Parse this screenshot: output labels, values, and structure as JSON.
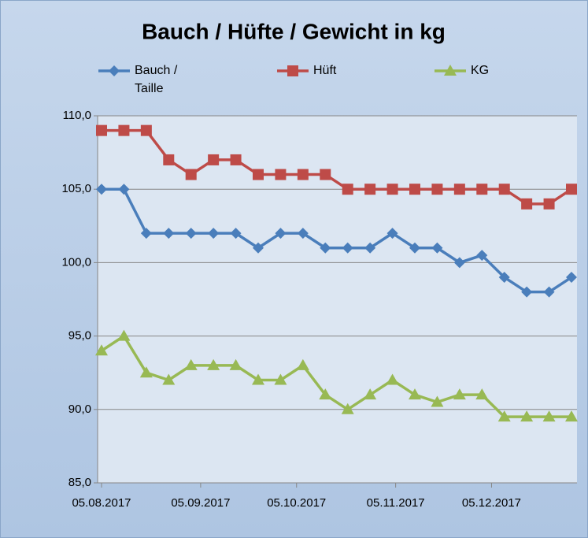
{
  "chart_data": {
    "type": "line",
    "title": "Bauch / Hüfte /  Gewicht in kg",
    "x": [
      "05.08.2017",
      "12.08.2017",
      "19.08.2017",
      "26.08.2017",
      "02.09.2017",
      "09.09.2017",
      "16.09.2017",
      "23.09.2017",
      "30.09.2017",
      "07.10.2017",
      "14.10.2017",
      "21.10.2017",
      "28.10.2017",
      "04.11.2017",
      "11.11.2017",
      "18.11.2017",
      "25.11.2017",
      "02.12.2017",
      "09.12.2017",
      "16.12.2017",
      "23.12.2017",
      "30.12.2017"
    ],
    "xlim": [
      "05.08.2017",
      "30.12.2017"
    ],
    "xticks": [
      "05.08.2017",
      "05.09.2017",
      "05.10.2017",
      "05.11.2017",
      "05.12.2017"
    ],
    "ylim": [
      85,
      110
    ],
    "yticks": [
      {
        "value": 85,
        "label": "85,0"
      },
      {
        "value": 90,
        "label": "90,0"
      },
      {
        "value": 95,
        "label": "95,0"
      },
      {
        "value": 100,
        "label": "100,0"
      },
      {
        "value": 105,
        "label": "105,0"
      },
      {
        "value": 110,
        "label": "110,0"
      }
    ],
    "grid": true,
    "series": [
      {
        "name": "Bauch / Taille",
        "color": "#4a7ebb",
        "marker": "diamond",
        "values": [
          105,
          105,
          102,
          102,
          102,
          102,
          102,
          101,
          102,
          102,
          101,
          101,
          101,
          102,
          101,
          101,
          100,
          100.5,
          99,
          98,
          98,
          99
        ]
      },
      {
        "name": "Hüft",
        "color": "#be4b48",
        "marker": "square",
        "values": [
          109,
          109,
          109,
          107,
          106,
          107,
          107,
          106,
          106,
          106,
          106,
          105,
          105,
          105,
          105,
          105,
          105,
          105,
          105,
          104,
          104,
          105
        ]
      },
      {
        "name": "KG",
        "color": "#98b954",
        "marker": "triangle",
        "values": [
          94,
          95,
          92.5,
          92,
          93,
          93,
          93,
          92,
          92,
          93,
          91,
          90,
          91,
          92,
          91,
          90.5,
          91,
          91,
          89.5,
          89.5,
          89.5,
          89.5
        ]
      }
    ]
  }
}
